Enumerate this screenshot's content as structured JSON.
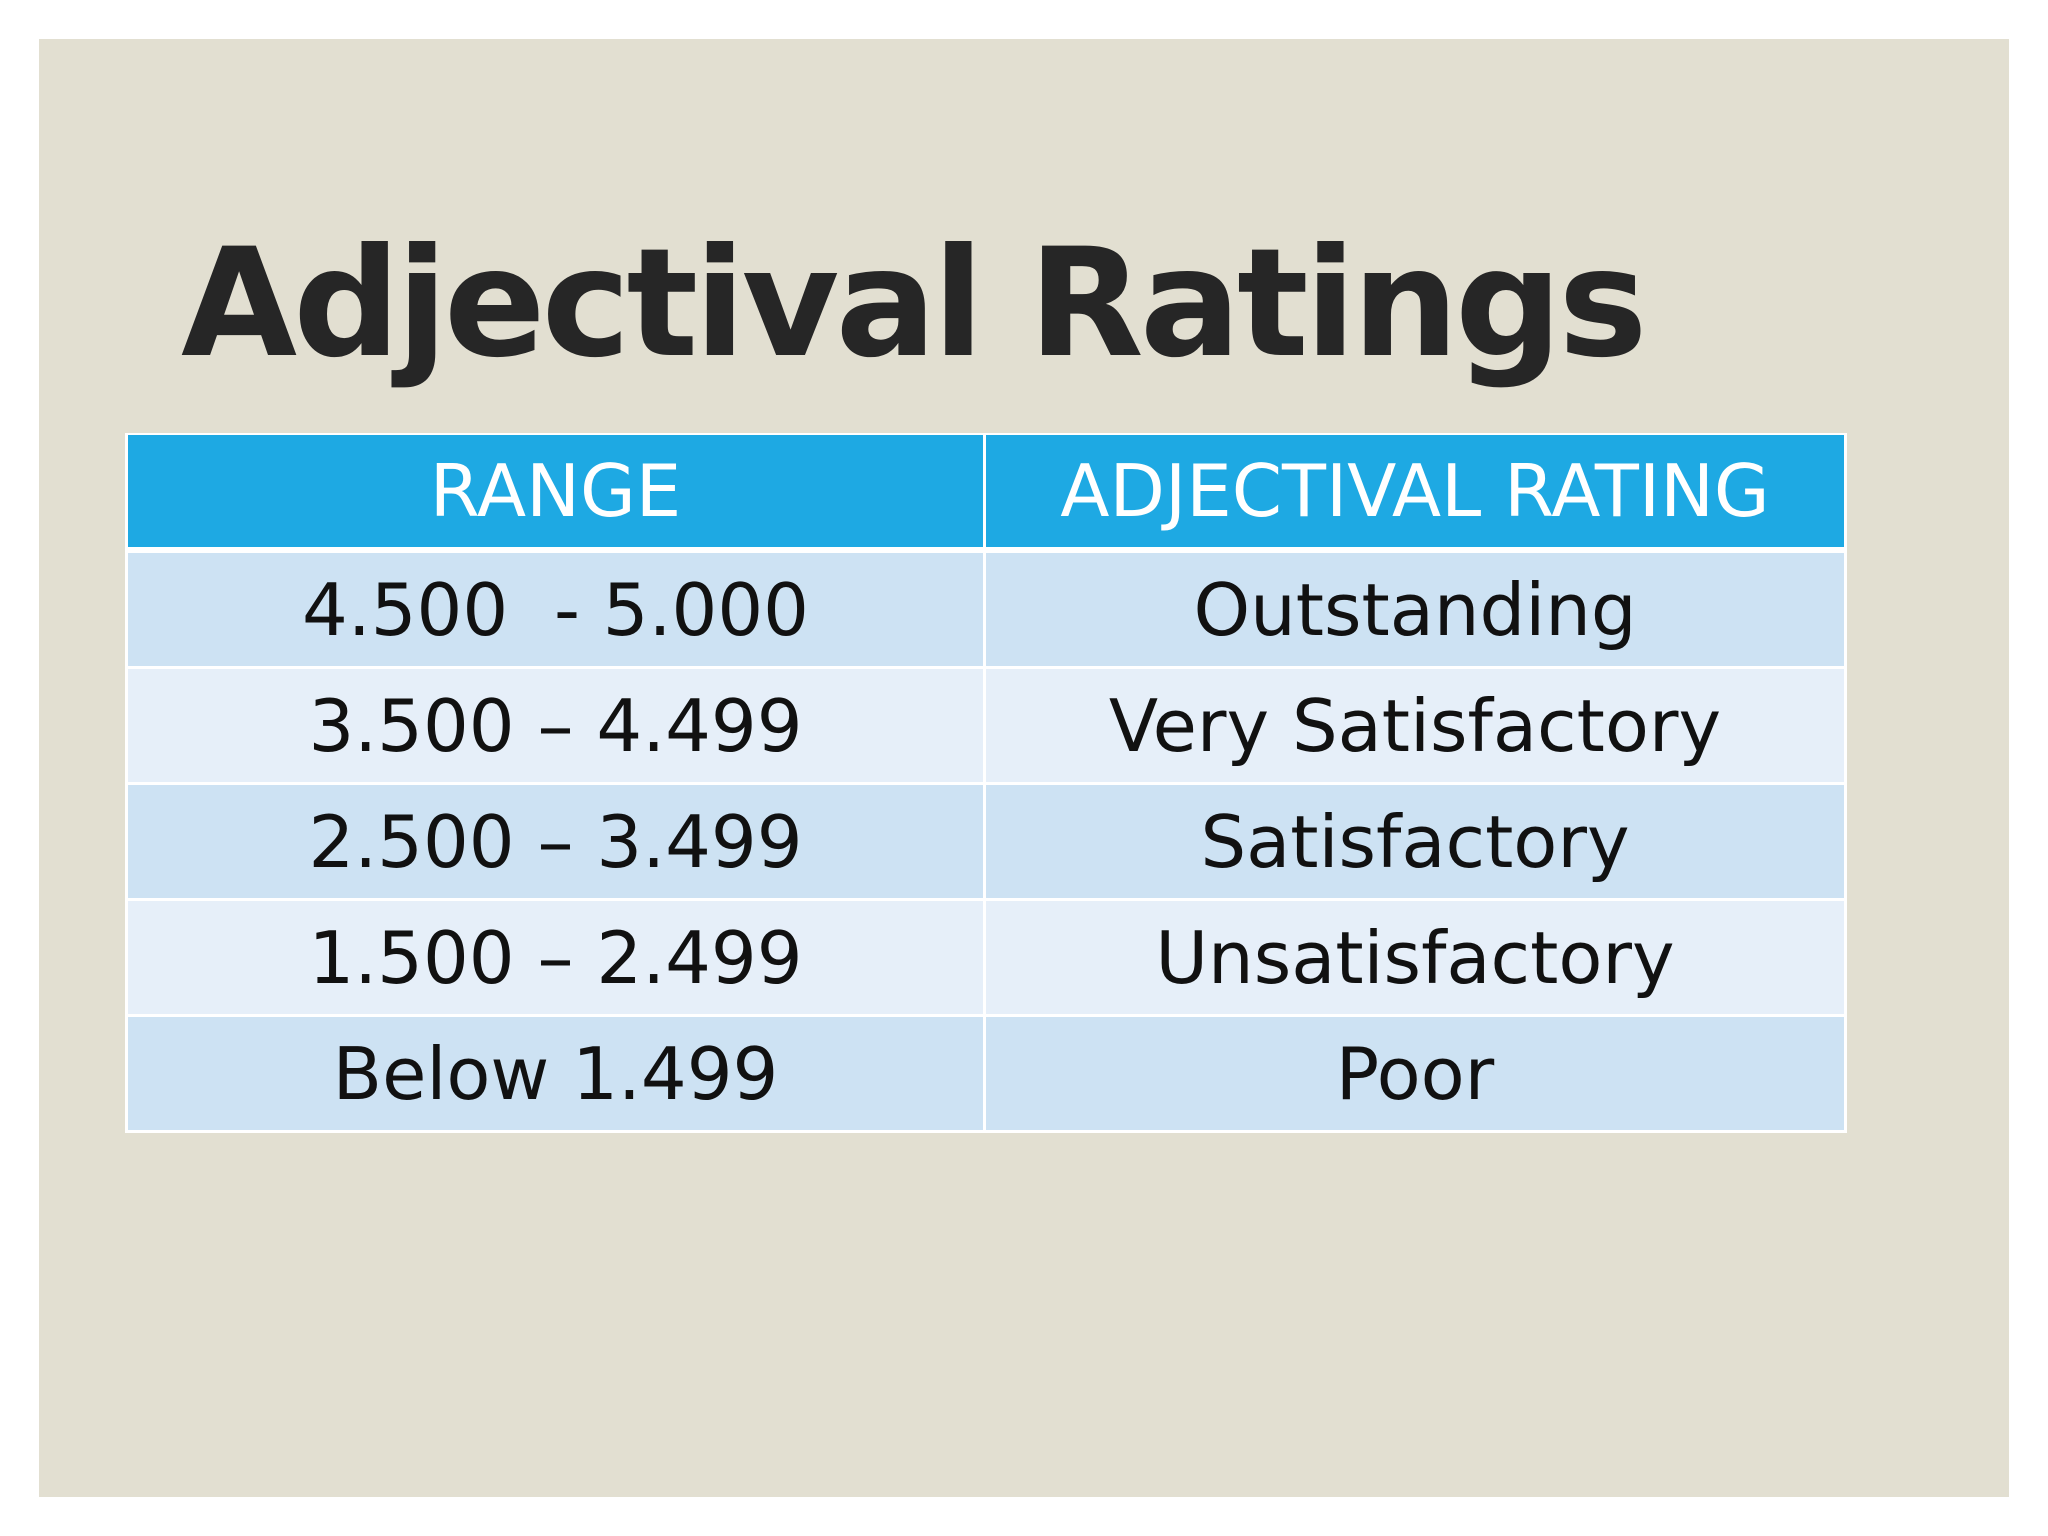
{
  "slide": {
    "title": "Adjectival Ratings",
    "background_color": "#e2dfd1"
  },
  "table": {
    "header_color": "#1ea9e3",
    "row_colors": [
      "#cde2f3",
      "#e6eff9"
    ],
    "columns": [
      "RANGE",
      "ADJECTIVAL RATING"
    ],
    "rows": [
      {
        "range": "4.500  - 5.000",
        "rating": "Outstanding"
      },
      {
        "range": "3.500 – 4.499",
        "rating": "Very Satisfactory"
      },
      {
        "range": "2.500 – 3.499",
        "rating": "Satisfactory"
      },
      {
        "range": "1.500 – 2.499",
        "rating": "Unsatisfactory"
      },
      {
        "range": "Below 1.499",
        "rating": "Poor"
      }
    ]
  }
}
